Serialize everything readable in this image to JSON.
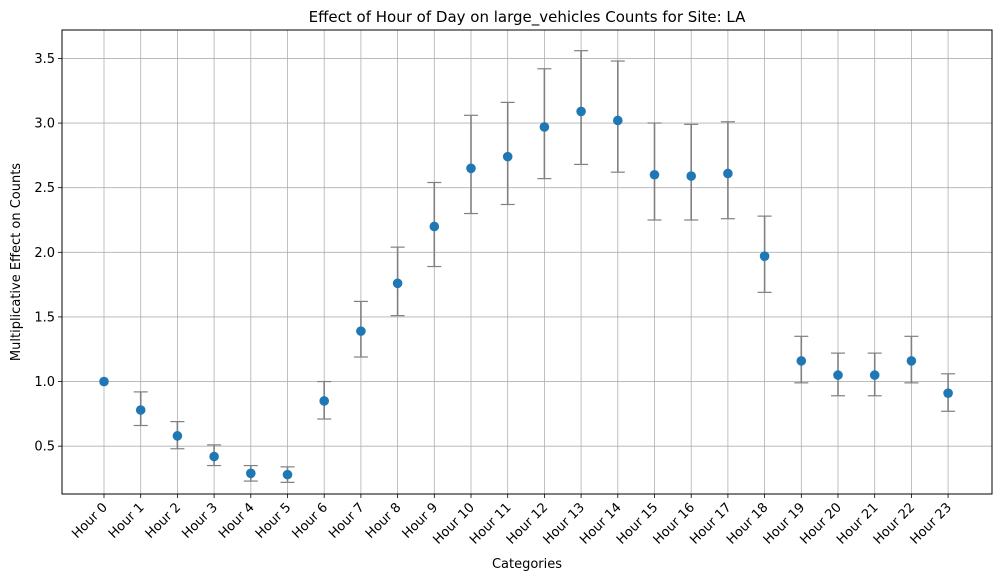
{
  "chart_data": {
    "type": "scatter",
    "title": "Effect of Hour of Day on large_vehicles Counts for Site: LA",
    "xlabel": "Categories",
    "ylabel": "Multiplicative Effect on Counts",
    "categories": [
      "Hour 0",
      "Hour 1",
      "Hour 2",
      "Hour 3",
      "Hour 4",
      "Hour 5",
      "Hour 6",
      "Hour 7",
      "Hour 8",
      "Hour 9",
      "Hour 10",
      "Hour 11",
      "Hour 12",
      "Hour 13",
      "Hour 14",
      "Hour 15",
      "Hour 16",
      "Hour 17",
      "Hour 18",
      "Hour 19",
      "Hour 20",
      "Hour 21",
      "Hour 22",
      "Hour 23"
    ],
    "values": [
      1.0,
      0.78,
      0.58,
      0.42,
      0.29,
      0.28,
      0.85,
      1.39,
      1.76,
      2.2,
      2.65,
      2.74,
      2.97,
      3.09,
      3.02,
      2.6,
      2.59,
      2.61,
      1.97,
      1.16,
      1.05,
      1.05,
      1.16,
      0.91
    ],
    "lower": [
      1.0,
      0.66,
      0.48,
      0.35,
      0.23,
      0.22,
      0.71,
      1.19,
      1.51,
      1.89,
      2.3,
      2.37,
      2.57,
      2.68,
      2.62,
      2.25,
      2.25,
      2.26,
      1.69,
      0.99,
      0.89,
      0.89,
      0.99,
      0.77
    ],
    "upper": [
      1.0,
      0.92,
      0.69,
      0.51,
      0.35,
      0.34,
      1.0,
      1.62,
      2.04,
      2.54,
      3.06,
      3.16,
      3.42,
      3.56,
      3.48,
      3.0,
      2.99,
      3.01,
      2.28,
      1.35,
      1.22,
      1.22,
      1.35,
      1.06
    ],
    "yticks": [
      "0.5",
      "1.0",
      "1.5",
      "2.0",
      "2.5",
      "3.0",
      "3.5"
    ],
    "ylim": [
      0.13,
      3.72
    ],
    "grid": true,
    "colors": {
      "marker": "#1f77b4",
      "errorbar": "#808080",
      "grid": "#b0b0b0"
    }
  }
}
